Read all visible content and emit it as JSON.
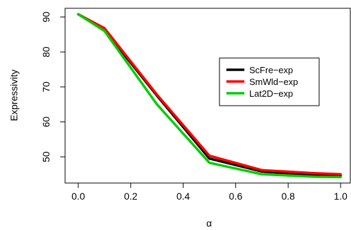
{
  "chart_data": {
    "type": "line",
    "xlabel": "α",
    "ylabel": "Expressivity",
    "xlim": [
      0.0,
      1.0
    ],
    "ylim": [
      42.5,
      92.5
    ],
    "x_ticks": [
      "0.0",
      "0.2",
      "0.4",
      "0.6",
      "0.8",
      "1.0"
    ],
    "y_ticks": [
      "50",
      "60",
      "70",
      "80",
      "90"
    ],
    "x": [
      0.0,
      0.1,
      0.3,
      0.5,
      0.7,
      0.9,
      1.0
    ],
    "series": [
      {
        "name": "ScFre−exp",
        "color": "#000000",
        "values": [
          90.8,
          86.3,
          67.5,
          49.5,
          45.8,
          44.8,
          44.6
        ]
      },
      {
        "name": "SmWld−exp",
        "color": "#ff0000",
        "values": [
          90.8,
          86.8,
          67.8,
          50.3,
          46.2,
          45.3,
          45.0
        ]
      },
      {
        "name": "Lat2D−exp",
        "color": "#00cc00",
        "values": [
          90.8,
          86.0,
          65.0,
          48.3,
          45.0,
          44.3,
          44.2
        ]
      }
    ],
    "grid": false,
    "legend_position": "right"
  }
}
